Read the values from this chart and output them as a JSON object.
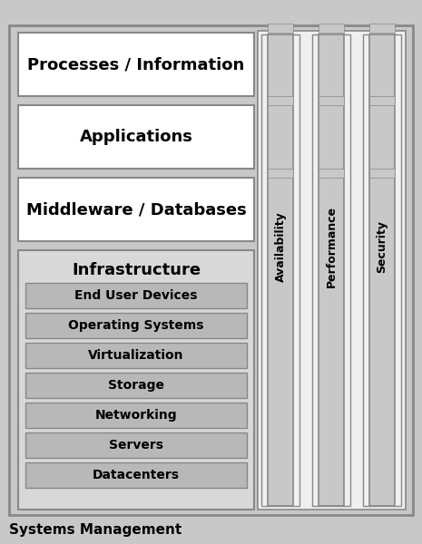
{
  "title": "Systems Management",
  "bg_outer": "#c8c8c8",
  "bg_inner": "#e8e8e8",
  "white": "#ffffff",
  "gray_col": "#c8c8c8",
  "infra_bg": "#d8d8d8",
  "item_bg": "#b8b8b8",
  "border": "#888888",
  "horizontal_labels": [
    "Processes / Information",
    "Applications",
    "Middleware / Databases"
  ],
  "infrastructure_label": "Infrastructure",
  "infrastructure_items": [
    "End User Devices",
    "Operating Systems",
    "Virtualization",
    "Storage",
    "Networking",
    "Servers",
    "Datacenters"
  ],
  "vertical_labels": [
    "Availability",
    "Performance",
    "Security"
  ],
  "figsize": [
    4.65,
    6.0
  ],
  "dpi": 100
}
